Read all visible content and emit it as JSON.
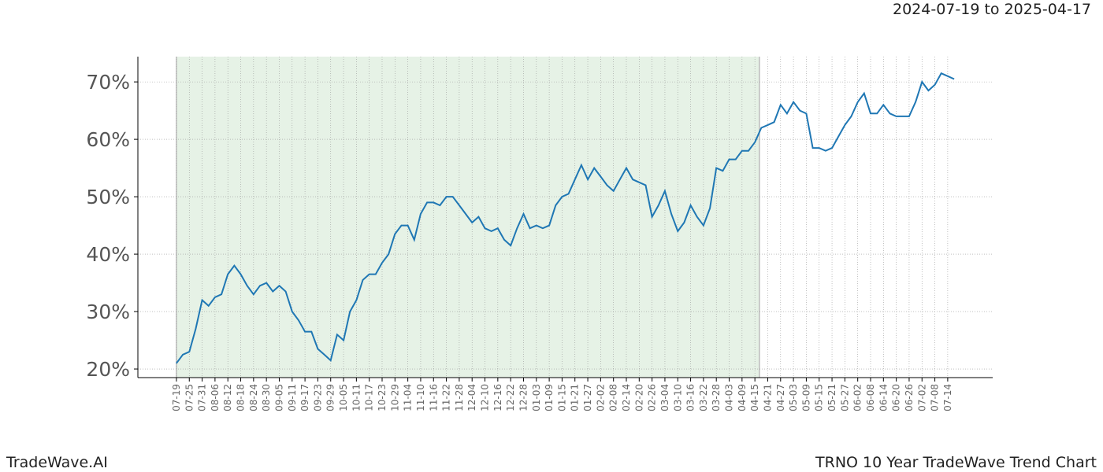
{
  "chart_data": {
    "type": "line",
    "subtitle": "2024-07-19 to 2025-04-17",
    "footer_left": "TradeWave.AI",
    "footer_right": "TRNO 10 Year TradeWave Trend Chart",
    "categories": [
      "07-19",
      null,
      "07-25",
      null,
      "07-31",
      null,
      "08-06",
      null,
      "08-12",
      null,
      "08-18",
      null,
      "08-24",
      null,
      "08-30",
      null,
      "09-05",
      null,
      "09-11",
      null,
      "09-17",
      null,
      "09-23",
      null,
      "09-29",
      null,
      "10-05",
      null,
      "10-11",
      null,
      "10-17",
      null,
      "10-23",
      null,
      "10-29",
      null,
      "11-04",
      null,
      "11-10",
      null,
      "11-16",
      null,
      "11-22",
      null,
      "11-28",
      null,
      "12-04",
      null,
      "12-10",
      null,
      "12-16",
      null,
      "12-22",
      null,
      "12-28",
      null,
      "01-03",
      null,
      "01-09",
      null,
      "01-15",
      null,
      "01-21",
      null,
      "01-27",
      null,
      "02-02",
      null,
      "02-08",
      null,
      "02-14",
      null,
      "02-20",
      null,
      "02-26",
      null,
      "03-04",
      null,
      "03-10",
      null,
      "03-16",
      null,
      "03-22",
      null,
      "03-28",
      null,
      "04-03",
      null,
      "04-09",
      null,
      "04-15",
      null,
      "04-21",
      null,
      "04-27",
      null,
      "05-03",
      null,
      "05-09",
      null,
      "05-15",
      null,
      "05-21",
      null,
      "05-27",
      null,
      "06-02",
      null,
      "06-08",
      null,
      "06-14",
      null,
      "06-20",
      null,
      "06-26",
      null,
      "07-02",
      null,
      "07-08",
      null,
      "07-14",
      null
    ],
    "series": [
      {
        "color": "#1f77b4",
        "values": [
          21,
          22.5,
          23,
          27,
          32,
          31,
          32.5,
          33,
          36.5,
          38,
          36.5,
          34.5,
          33,
          34.5,
          35,
          33.5,
          34.5,
          33.5,
          30,
          28.5,
          26.5,
          26.5,
          23.5,
          22.5,
          21.5,
          26,
          25,
          30,
          32,
          35.5,
          36.5,
          36.5,
          38.5,
          40,
          43.5,
          45,
          45,
          42.5,
          47,
          49,
          49,
          48.5,
          50,
          50,
          48.5,
          47,
          45.5,
          46.5,
          44.5,
          44,
          44.5,
          42.5,
          41.5,
          44.5,
          47,
          44.5,
          45,
          44.5,
          45,
          48.5,
          50,
          50.5,
          53,
          55.5,
          53,
          55,
          53.5,
          52,
          51,
          53,
          55,
          53,
          52.5,
          52,
          46.5,
          48.5,
          51,
          47,
          44,
          45.5,
          48.5,
          46.5,
          45,
          48,
          55,
          54.5,
          56.5,
          56.5,
          58,
          58,
          59.5,
          62,
          62.5,
          63,
          66,
          64.5,
          66.5,
          65,
          64.5,
          58.5,
          58.5,
          58,
          58.5,
          60.5,
          62.5,
          64,
          66.5,
          68,
          64.5,
          64.5,
          66,
          64.5,
          64,
          64,
          64,
          66.5,
          70,
          68.5,
          69.5,
          71.5,
          71,
          70.5
        ]
      }
    ],
    "highlight": {
      "start": 0,
      "end": 90.7,
      "color": "#e6f2e6"
    },
    "xlim": [
      -6,
      127
    ],
    "ylim": [
      18.5,
      74.4
    ],
    "yticks": [
      {
        "value": 20,
        "label": "20%"
      },
      {
        "value": 30,
        "label": "30%"
      },
      {
        "value": 40,
        "label": "40%"
      },
      {
        "value": 50,
        "label": "50%"
      },
      {
        "value": 60,
        "label": "60%"
      },
      {
        "value": 70,
        "label": "70%"
      }
    ],
    "grid": true
  }
}
